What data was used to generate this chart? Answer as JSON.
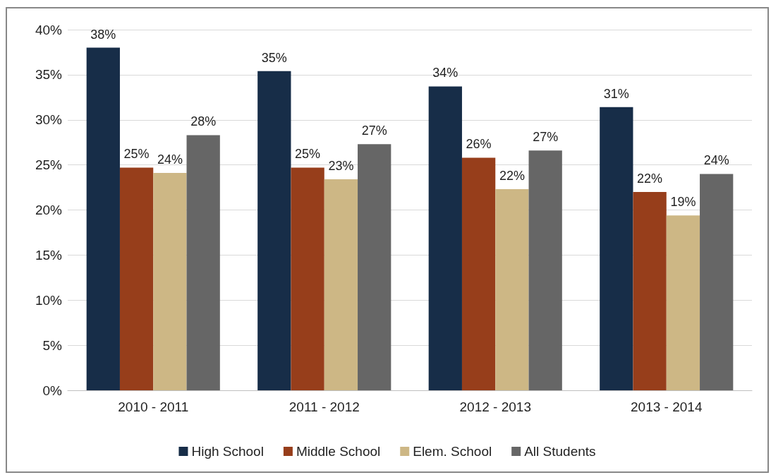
{
  "chart_data": {
    "type": "bar",
    "categories": [
      "2010 - 2011",
      "2011 - 2012",
      "2012 - 2013",
      "2013 - 2014"
    ],
    "series": [
      {
        "name": "High School",
        "color": "#172d48",
        "values": [
          38.0,
          35.4,
          33.7,
          31.4
        ],
        "value_labels": [
          "38%",
          "35%",
          "34%",
          "31%"
        ]
      },
      {
        "name": "Middle School",
        "color": "#973e1b",
        "values": [
          24.7,
          24.7,
          25.8,
          22.0
        ],
        "value_labels": [
          "25%",
          "25%",
          "26%",
          "22%"
        ]
      },
      {
        "name": "Elem. School",
        "color": "#cdb785",
        "values": [
          24.1,
          23.4,
          22.3,
          19.4
        ],
        "value_labels": [
          "24%",
          "23%",
          "22%",
          "19%"
        ]
      },
      {
        "name": "All Students",
        "color": "#666666",
        "values": [
          28.3,
          27.3,
          26.6,
          24.0
        ],
        "value_labels": [
          "28%",
          "27%",
          "27%",
          "24%"
        ]
      }
    ],
    "ylim": [
      0,
      40
    ],
    "yticks": [
      {
        "value": 0,
        "label": "0%"
      },
      {
        "value": 5,
        "label": "5%"
      },
      {
        "value": 10,
        "label": "10%"
      },
      {
        "value": 15,
        "label": "15%"
      },
      {
        "value": 20,
        "label": "20%"
      },
      {
        "value": 25,
        "label": "25%"
      },
      {
        "value": 30,
        "label": "30%"
      },
      {
        "value": 35,
        "label": "35%"
      },
      {
        "value": 40,
        "label": "40%"
      }
    ],
    "grid": "y",
    "legend": "bottom"
  }
}
